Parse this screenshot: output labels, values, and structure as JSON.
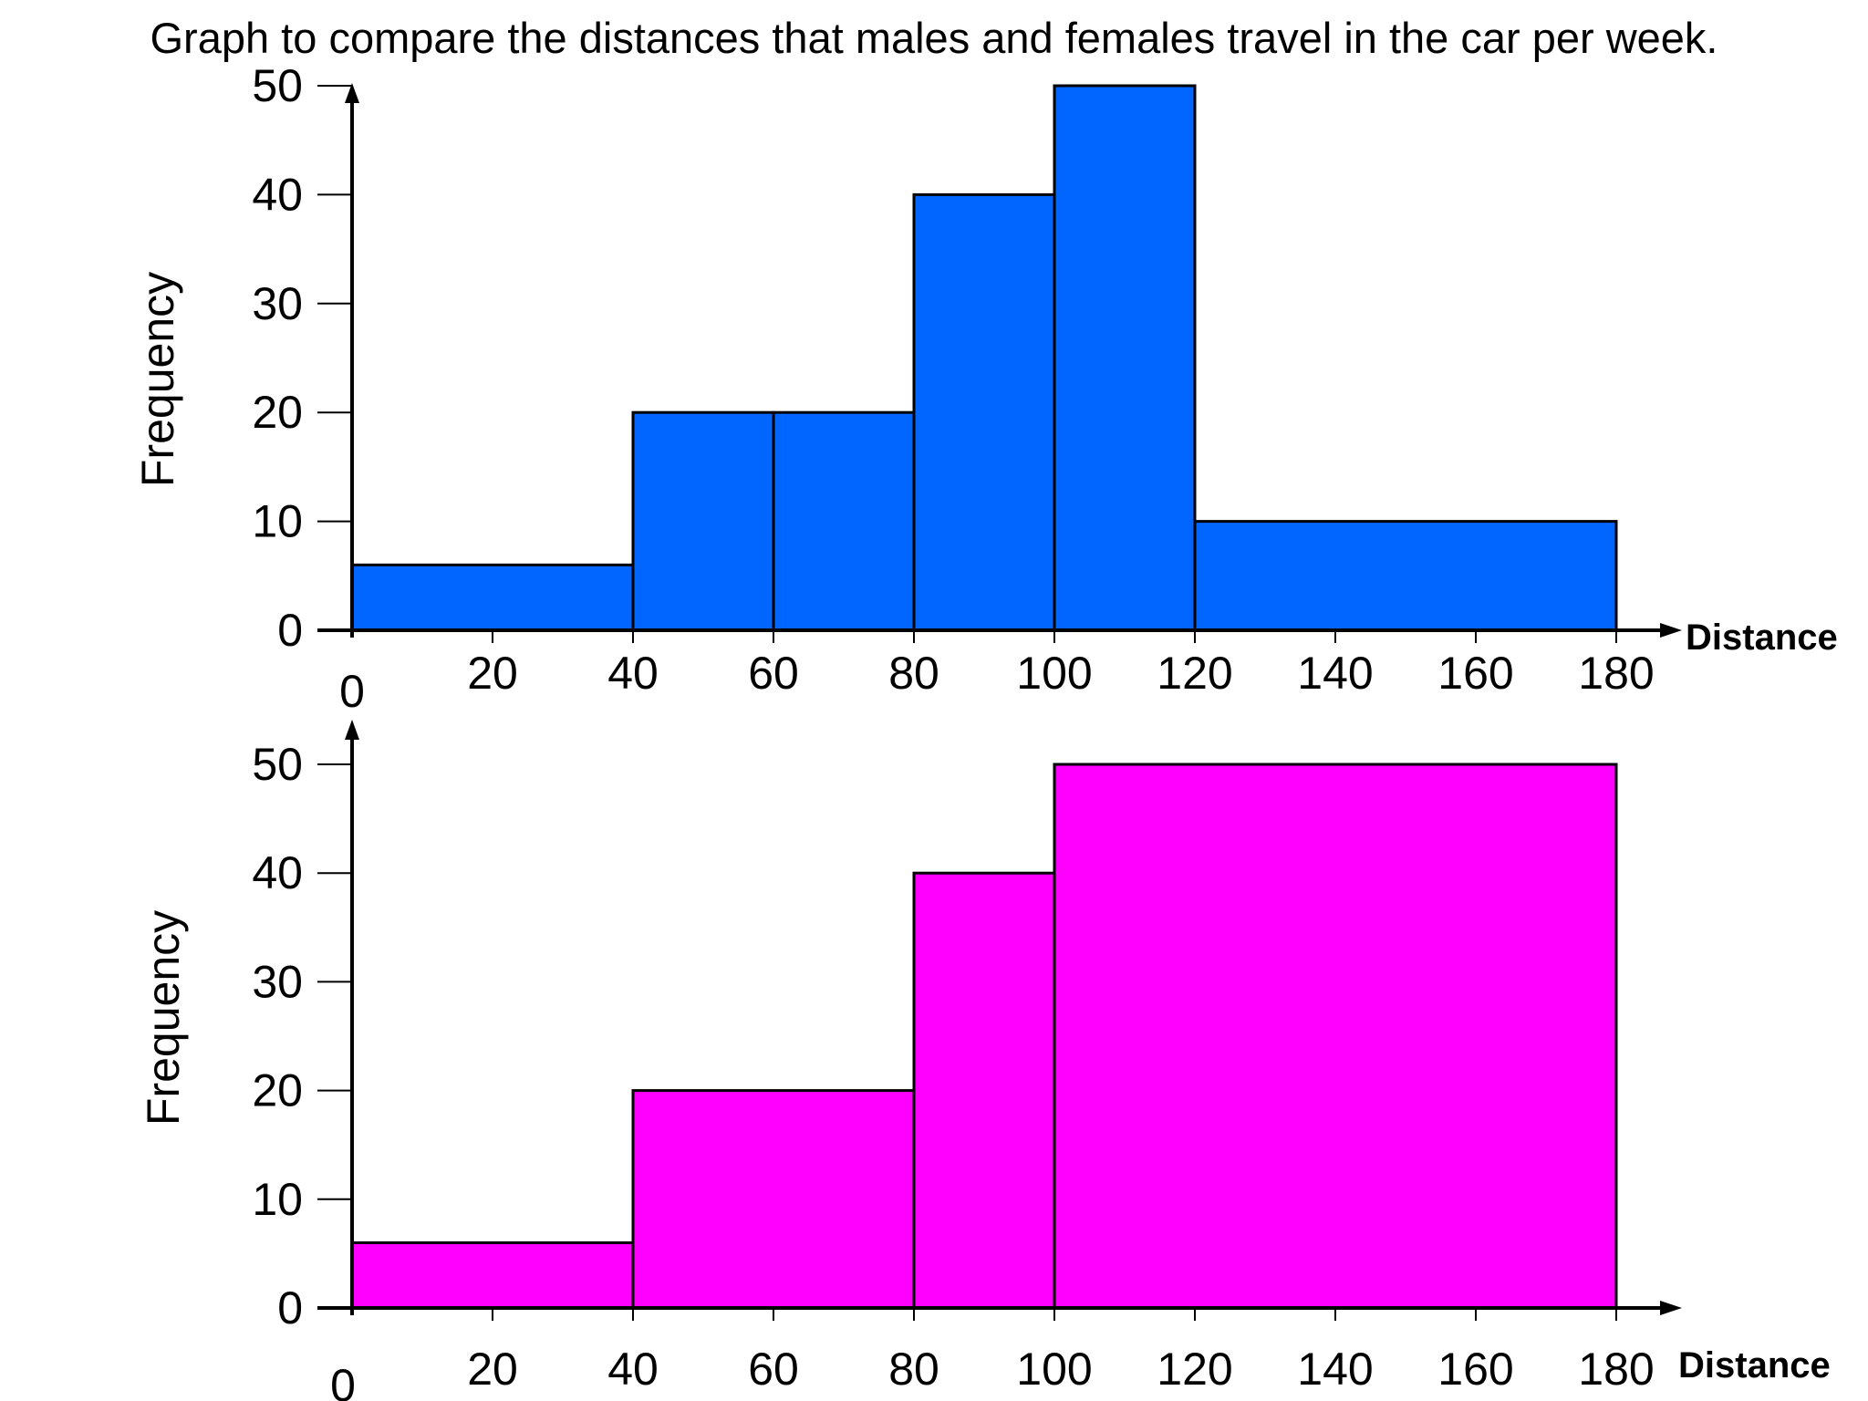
{
  "title": "Graph to compare the distances that males and females travel in the car per week.",
  "chart_data": [
    {
      "type": "bar",
      "xlabel": "Distance",
      "ylabel": "Frequency",
      "xlim": [
        0,
        180
      ],
      "ylim": [
        0,
        50
      ],
      "x_ticks": [
        "20",
        "40",
        "60",
        "80",
        "100",
        "120",
        "140",
        "160",
        "180"
      ],
      "y_ticks": [
        "0",
        "10",
        "20",
        "30",
        "40",
        "50"
      ],
      "origin_label": "0",
      "bar_color": "#0066ff",
      "bins": [
        {
          "x0": 0,
          "x1": 40,
          "value": 6
        },
        {
          "x0": 40,
          "x1": 60,
          "value": 20
        },
        {
          "x0": 60,
          "x1": 80,
          "value": 20
        },
        {
          "x0": 80,
          "x1": 100,
          "value": 40
        },
        {
          "x0": 100,
          "x1": 120,
          "value": 50
        },
        {
          "x0": 120,
          "x1": 180,
          "value": 10
        }
      ]
    },
    {
      "type": "bar",
      "xlabel": "Distance",
      "ylabel": "Frequency",
      "xlim": [
        0,
        180
      ],
      "ylim": [
        0,
        50
      ],
      "x_ticks": [
        "20",
        "40",
        "60",
        "80",
        "100",
        "120",
        "140",
        "160",
        "180"
      ],
      "y_ticks": [
        "0",
        "10",
        "20",
        "30",
        "40",
        "50"
      ],
      "origin_label": "0",
      "bar_color": "#ff00ff",
      "bins": [
        {
          "x0": 0,
          "x1": 40,
          "value": 6
        },
        {
          "x0": 40,
          "x1": 80,
          "value": 20
        },
        {
          "x0": 80,
          "x1": 100,
          "value": 40
        },
        {
          "x0": 100,
          "x1": 180,
          "value": 50
        }
      ]
    }
  ]
}
